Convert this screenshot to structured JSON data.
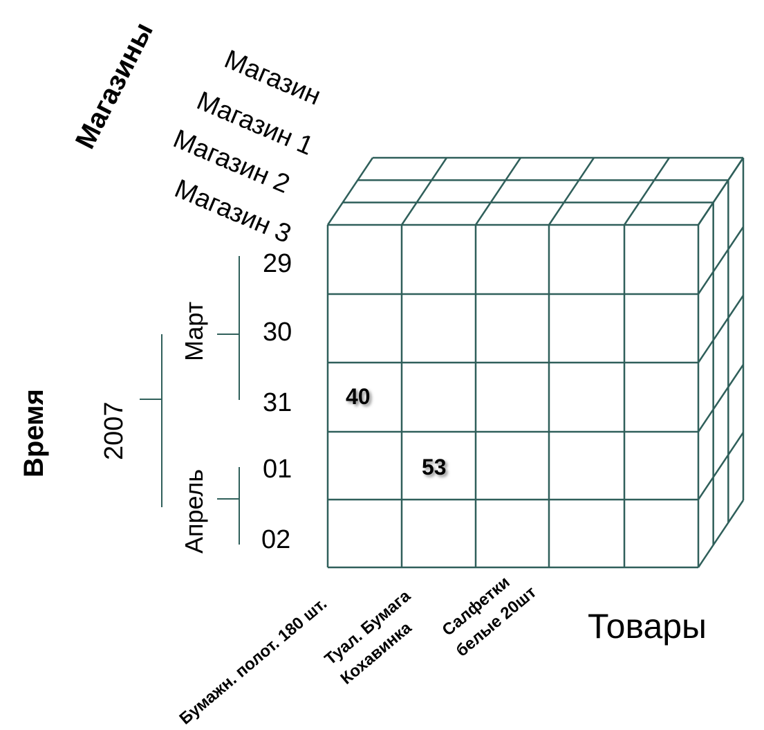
{
  "dimensions": {
    "stores_title": "Магазины",
    "time_title": "Время",
    "goods_title": "Товары"
  },
  "stores": [
    "Магазин",
    "Магазин 1",
    "Магазин 2",
    "Магазин 3"
  ],
  "time": {
    "year": "2007",
    "months": [
      "Март",
      "Апрель"
    ],
    "days": [
      "29",
      "30",
      "31",
      "01",
      "02"
    ]
  },
  "products": [
    [
      "Бумажн. полот. 180 шт."
    ],
    [
      "Туал. Бумага",
      "Кохавинка"
    ],
    [
      "Салфетки",
      "белые 20шт"
    ]
  ],
  "cells": [
    {
      "day": "31",
      "product": "Бумажн. полот. 180 шт.",
      "value": "40"
    },
    {
      "day": "01",
      "product": "Туал. Бумага Кохавинка",
      "value": "53"
    }
  ],
  "colors": {
    "grid": "#2f5f5a",
    "text": "#000000"
  }
}
